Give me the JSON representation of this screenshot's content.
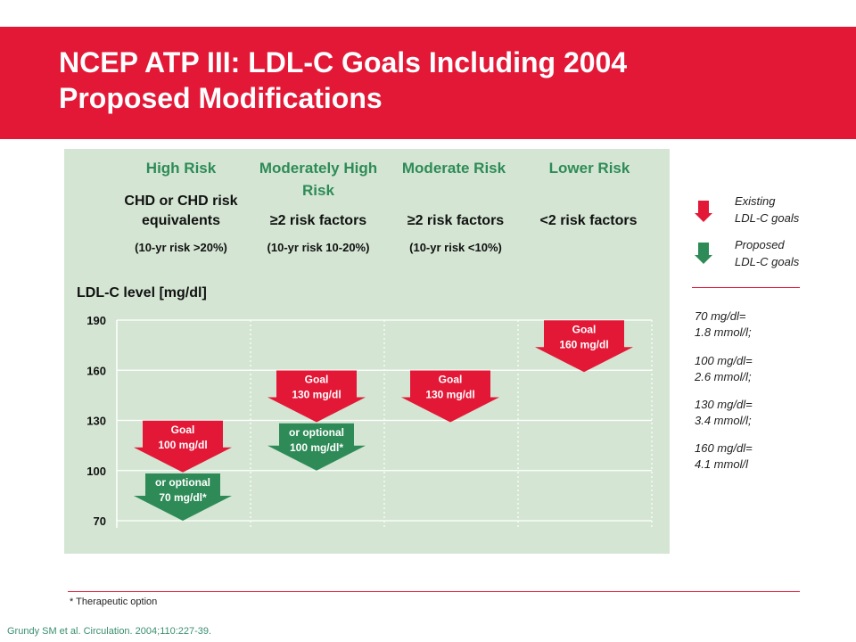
{
  "title_line1": "NCEP ATP III: LDL-C Goals Including 2004",
  "title_line2": "Proposed Modifications",
  "columns": [
    {
      "title": "High Risk",
      "desc": "CHD or CHD risk equivalents",
      "range": "(10-yr risk >20%)"
    },
    {
      "title": "Moderately High Risk",
      "desc": "≥2 risk factors",
      "range": "(10-yr risk 10-20%)"
    },
    {
      "title": "Moderate Risk",
      "desc": "≥2 risk factors",
      "range": "(10-yr risk <10%)"
    },
    {
      "title": "Lower Risk",
      "desc": "<2 risk factors",
      "range": ""
    }
  ],
  "legend": {
    "existing": "Existing\nLDL-C  goals",
    "proposed": "Proposed\nLDL-C goals"
  },
  "conversions": [
    "70 mg/dl=\n1.8 mmol/l;",
    "100 mg/dl=\n2.6 mmol/l;",
    "130 mg/dl=\n3.4 mmol/l;",
    "160 mg/dl=\n4.1 mmol/l"
  ],
  "footnote": "* Therapeutic option",
  "citation": "Grundy SM et al. Circulation. 2004;110:227-39.",
  "colors": {
    "existing": "#e31837",
    "proposed": "#2e8b57",
    "header": "#e31837",
    "panel": "#d4e6d3"
  },
  "chart_data": {
    "type": "bar",
    "ylabel": "LDL-C level [mg/dl]",
    "yticks": [
      190,
      160,
      130,
      100,
      70
    ],
    "ylim": [
      70,
      190
    ],
    "categories": [
      "High Risk",
      "Moderately High Risk",
      "Moderate Risk",
      "Lower Risk"
    ],
    "series": [
      {
        "name": "Existing LDL-C goals",
        "color": "#e31837",
        "values": [
          100,
          130,
          130,
          160
        ],
        "labels": [
          [
            "Goal",
            "100 mg/dl"
          ],
          [
            "Goal",
            "130 mg/dl"
          ],
          [
            "Goal",
            "130 mg/dl"
          ],
          [
            "Goal",
            "160 mg/dl"
          ]
        ]
      },
      {
        "name": "Proposed LDL-C goals",
        "color": "#2e8b57",
        "values": [
          70,
          100,
          null,
          null
        ],
        "labels": [
          [
            "or  optional",
            "70 mg/dl*"
          ],
          [
            "or  optional",
            "100 mg/dl*"
          ],
          null,
          null
        ]
      }
    ]
  }
}
